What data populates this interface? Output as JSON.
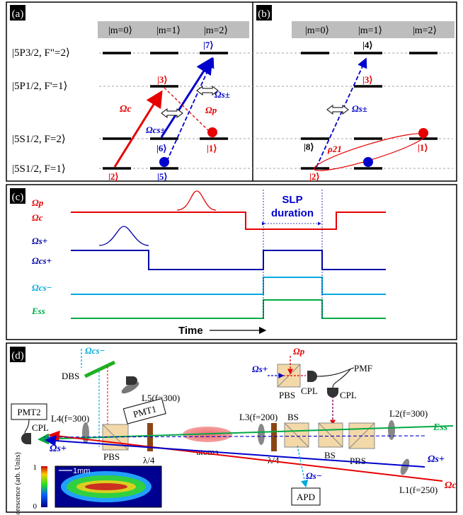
{
  "panels": {
    "a": "(a)",
    "b": "(b)",
    "c": "(c)",
    "d": "(d)"
  },
  "m_labels": [
    "|m=0⟩",
    "|m=1⟩",
    "|m=2⟩"
  ],
  "levels": [
    "|5P3/2, F\"=2⟩",
    "|5P1/2, F'=1⟩",
    "|5S1/2, F=2⟩",
    "|5S1/2, F=1⟩"
  ],
  "states_a": [
    "|7⟩",
    "|3⟩",
    "|6⟩",
    "|1⟩",
    "|5⟩",
    "|2⟩"
  ],
  "states_b": [
    "|4⟩",
    "|3⟩",
    "|8⟩",
    "|1⟩",
    "|2⟩"
  ],
  "fields": {
    "oc": "Ωc",
    "op": "Ωp",
    "os": "Ωs±",
    "ocs": "Ωcs±",
    "rho": "ρ21"
  },
  "timing": {
    "rows": [
      "Ωp",
      "Ωc",
      "Ωs+",
      "Ωcs+",
      "Ωcs−",
      "Ess"
    ],
    "slp1": "SLP",
    "slp2": "duration",
    "time": "Time"
  },
  "setup": {
    "pmt2": "PMT2",
    "pmt1": "PMT1",
    "apd": "APD",
    "pmf": "PMF",
    "cpl": "CPL",
    "dbs": "DBS",
    "pbs": "PBS",
    "bs": "BS",
    "qwp": "λ/4",
    "atoms": "atoms",
    "l1": "L1(f=250)",
    "l2": "L2(f=300)",
    "l3": "L3(f=200)",
    "l4": "L4(f=300)",
    "l5": "L5(f=300)",
    "ess": "Ess",
    "ocs_minus": "Ωcs−",
    "os_plus": "Ωs+",
    "os_minus": "Ωs−",
    "op": "Ωp",
    "oc": "Ωc",
    "fluor_axis": "Fluorescence (arb. Units)",
    "fl_one": "1",
    "fl_zero": "0",
    "scale": "1mm"
  },
  "colors": {
    "red": "#e60000",
    "blue": "#0000cc",
    "cyan": "#00aadd",
    "green": "#00aa44",
    "gray": "#bdbdbd"
  }
}
